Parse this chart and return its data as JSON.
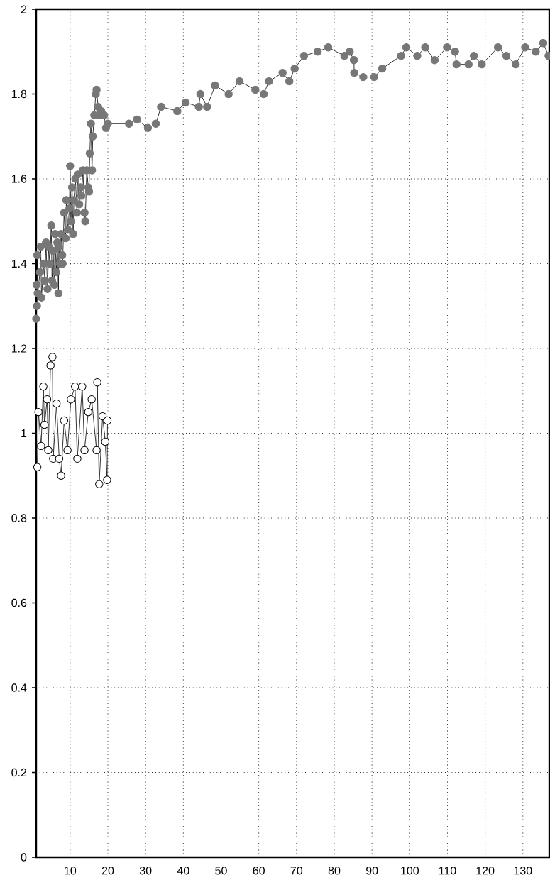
{
  "chart_data": {
    "type": "line",
    "series": [
      {
        "color": "#777777",
        "x": [
          1.0,
          1.1,
          1.2,
          1.3,
          1.4,
          2.0,
          2.2,
          2.4,
          3.0,
          3.3,
          3.6,
          4.0,
          4.3,
          4.6,
          5.0,
          5.2,
          5.5,
          5.8,
          6.0,
          6.3,
          6.6,
          6.9,
          7.0,
          7.3,
          7.6,
          7.9,
          8.0,
          8.4,
          8.8,
          9.0,
          9.4,
          9.8,
          10.0,
          10.2,
          10.5,
          10.8,
          11.0,
          11.4,
          11.8,
          12.0,
          12.4,
          12.8,
          13.0,
          13.4,
          13.8,
          14.0,
          14.4,
          14.8,
          15.0,
          15.2,
          15.5,
          15.8,
          16.0,
          16.4,
          16.8,
          17.0,
          17.4,
          17.8,
          18.2,
          18.6,
          19.0,
          19.5,
          20.0,
          25.6,
          27.7,
          30.6,
          32.7,
          34.1,
          38.4,
          40.6,
          44.1,
          44.5,
          46.3,
          48.4,
          52.0,
          54.9,
          59.1,
          61.3,
          62.7,
          66.3,
          68.1,
          69.5,
          72.0,
          75.6,
          78.4,
          82.7,
          84.1,
          85.2,
          85.3,
          87.7,
          90.6,
          92.7,
          97.7,
          99.1,
          102.0,
          104.1,
          106.6,
          109.9,
          112.0,
          112.4,
          115.6,
          117.0,
          119.1,
          123.4,
          125.6,
          128.1,
          130.6,
          133.4,
          135.4,
          136.8
        ],
        "values": [
          1.27,
          1.35,
          1.3,
          1.42,
          1.33,
          1.38,
          1.44,
          1.32,
          1.4,
          1.36,
          1.45,
          1.34,
          1.44,
          1.4,
          1.49,
          1.36,
          1.43,
          1.35,
          1.47,
          1.38,
          1.45,
          1.33,
          1.44,
          1.4,
          1.47,
          1.42,
          1.4,
          1.52,
          1.46,
          1.55,
          1.48,
          1.53,
          1.63,
          1.5,
          1.58,
          1.47,
          1.55,
          1.6,
          1.52,
          1.61,
          1.54,
          1.58,
          1.56,
          1.62,
          1.52,
          1.5,
          1.62,
          1.58,
          1.57,
          1.66,
          1.73,
          1.62,
          1.7,
          1.75,
          1.8,
          1.81,
          1.77,
          1.75,
          1.76,
          1.75,
          1.75,
          1.72,
          1.73,
          1.73,
          1.74,
          1.72,
          1.73,
          1.77,
          1.76,
          1.78,
          1.77,
          1.8,
          1.77,
          1.82,
          1.8,
          1.83,
          1.81,
          1.8,
          1.83,
          1.85,
          1.83,
          1.86,
          1.89,
          1.9,
          1.91,
          1.89,
          1.9,
          1.88,
          1.85,
          1.84,
          1.84,
          1.86,
          1.89,
          1.91,
          1.89,
          1.91,
          1.88,
          1.91,
          1.9,
          1.87,
          1.87,
          1.89,
          1.87,
          1.91,
          1.89,
          1.87,
          1.91,
          1.9,
          1.92,
          1.89
        ]
      },
      {
        "color": "#ffffff",
        "x": [
          1.3,
          1.6,
          2.3,
          2.9,
          3.2,
          3.9,
          4.2,
          4.8,
          5.3,
          5.5,
          6.4,
          7.1,
          7.6,
          8.4,
          9.3,
          10.2,
          11.3,
          11.9,
          13.2,
          13.8,
          14.8,
          15.7,
          17.0,
          17.2,
          17.7,
          18.6,
          19.3,
          19.8,
          19.9
        ],
        "values": [
          0.92,
          1.05,
          0.97,
          1.11,
          1.02,
          1.08,
          0.96,
          1.16,
          1.18,
          0.94,
          1.07,
          0.94,
          0.9,
          1.03,
          0.96,
          1.08,
          1.11,
          0.94,
          1.11,
          0.96,
          1.05,
          1.08,
          0.96,
          1.12,
          0.88,
          1.04,
          0.98,
          0.89,
          1.03
        ]
      }
    ],
    "xlim": [
      1,
      137
    ],
    "xticks": [
      10,
      20,
      30,
      40,
      50,
      60,
      70,
      80,
      90,
      100,
      110,
      120,
      130
    ],
    "ylim": [
      0,
      2
    ],
    "yticks": [
      0,
      0.2,
      0.4,
      0.6,
      0.8,
      1,
      1.2,
      1.4,
      1.6,
      1.8,
      2
    ],
    "grid": true,
    "marker": "circle",
    "line_style": "solid"
  }
}
